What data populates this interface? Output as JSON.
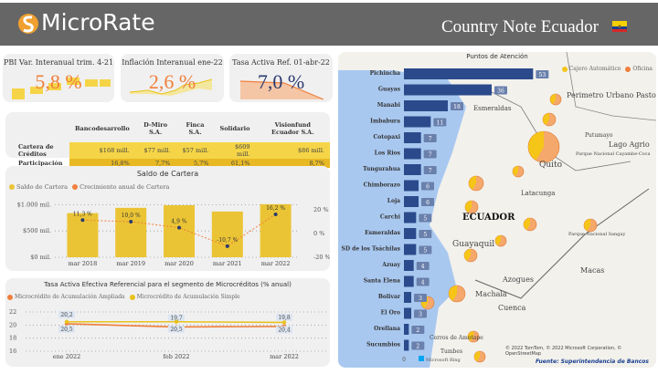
{
  "header": {
    "brand": "MicroRate",
    "title": "Country Note Ecuador",
    "flag_colors": [
      "#f5d000",
      "#1a3f8f",
      "#d62828"
    ]
  },
  "kpis": [
    {
      "title": "PBI Var. Interanual trim. 4-21",
      "value": "5,8 %",
      "color": "#f07f3c"
    },
    {
      "title": "Inflación Interanual ene-22",
      "value": "2,6 %",
      "color": "#f07f3c"
    },
    {
      "title": "Tasa Activa Ref. 01-abr-22",
      "value": "7,0 %",
      "color": "#2b3a6e"
    }
  ],
  "participation": {
    "columns": [
      "Bancodesarrollo",
      "D-Miro S.A.",
      "Finca S.A.",
      "Solidario",
      "Visionfund Ecuador S.A."
    ],
    "rows": [
      {
        "label": "Cartera de Créditos",
        "values": [
          "$168 mill.",
          "$77 mill.",
          "$57 mill.",
          "$609 mill.",
          "$86 mill."
        ]
      },
      {
        "label": "Participación",
        "values": [
          "16,8%",
          "7,7%",
          "5,7%",
          "61,1%",
          "8,7%"
        ]
      }
    ]
  },
  "chart_data": [
    {
      "type": "bar",
      "title": "Saldo de Cartera",
      "legend": [
        "Saldo de Cartera",
        "Crecimiento anual de Cartera"
      ],
      "legend_position": "top-left",
      "categories": [
        "mar 2018",
        "mar 2019",
        "mar 2020",
        "mar 2021",
        "mar 2022"
      ],
      "series": [
        {
          "name": "Saldo de Cartera",
          "type": "bar",
          "values": [
            840,
            940,
            990,
            870,
            1010
          ],
          "color": "#eac435"
        },
        {
          "name": "Crecimiento anual de Cartera",
          "type": "line",
          "values": [
            11.3,
            10.0,
            4.9,
            -10.7,
            16.2
          ],
          "labels": [
            "11,3 %",
            "10,0 %",
            "4,9 %",
            "-10,7 %",
            "16,2 %"
          ],
          "color": "#f07f3c"
        }
      ],
      "y_ticks": [
        "$0 mil.",
        "$500 mil.",
        "$1.000 mil."
      ],
      "ylim": [
        0,
        1250
      ],
      "y2_ticks": [
        "-20 %",
        "0 %",
        "20 %"
      ],
      "y2lim": [
        -20,
        20
      ]
    },
    {
      "type": "line",
      "title": "Tasa Activa Efectiva Referencial para el segmento de Microcréditos (% anual)",
      "legend": [
        "Microcrédito de Acumulación Ampliada",
        "Microcrédito de Acumulación Simple"
      ],
      "legend_position": "top-left",
      "categories": [
        "ene 2022",
        "feb 2022",
        "mar 2022"
      ],
      "series": [
        {
          "name": "Microcrédito de Acumulación Ampliada",
          "values": [
            20.2,
            19.7,
            19.8
          ],
          "color": "#f07f3c"
        },
        {
          "name": "Microcrédito de Acumulación Simple",
          "values": [
            20.5,
            20.5,
            20.4
          ],
          "color": "#e8c21c"
        }
      ],
      "y_ticks": [
        "16",
        "18",
        "20",
        "22"
      ],
      "ylim": [
        16,
        22
      ]
    },
    {
      "type": "bar",
      "title": "Puntos de Atención",
      "legend": [
        "Cajero Automático",
        "Oficina"
      ],
      "legend_colors": [
        "#f5c518",
        "#f07f3c"
      ],
      "categories": [
        "Pichincha",
        "Guayas",
        "Manabi",
        "Imbabura",
        "Cotopaxi",
        "Los Rios",
        "Tungurahua",
        "Chimborazo",
        "Loja",
        "Carchi",
        "Esmeraldas",
        "SD de los Tsáchilas",
        "Azuay",
        "Santa Elena",
        "Bolivar",
        "El Oro",
        "Orellana",
        "Sucumbios"
      ],
      "values": [
        53,
        36,
        18,
        11,
        7,
        7,
        7,
        6,
        6,
        5,
        5,
        5,
        4,
        4,
        3,
        3,
        2,
        2
      ],
      "x_ticks": [
        "0"
      ],
      "xlim": [
        0,
        60
      ],
      "color": "#2b4a8b"
    }
  ],
  "map": {
    "labels": [
      "Esmeraldas",
      "Perimetro Urbano Pasto",
      "Putumayo",
      "Lago Agrio",
      "Quito",
      "Parque Nacional Cayambe-Coca",
      "Latacunga",
      "ECUADOR",
      "Guayaquil",
      "Parque Nacional Sangay",
      "Macas",
      "Azogues",
      "Cuenca",
      "Machala",
      "Cerros de Amotape",
      "Tumbes"
    ],
    "copyright": "© 2022 TomTom, © 2022 Microsoft Corporation, © OpenStreetMap",
    "bing_label": "Microsoft Bing",
    "source": "Fuente: Superintendencia de Bancos"
  }
}
